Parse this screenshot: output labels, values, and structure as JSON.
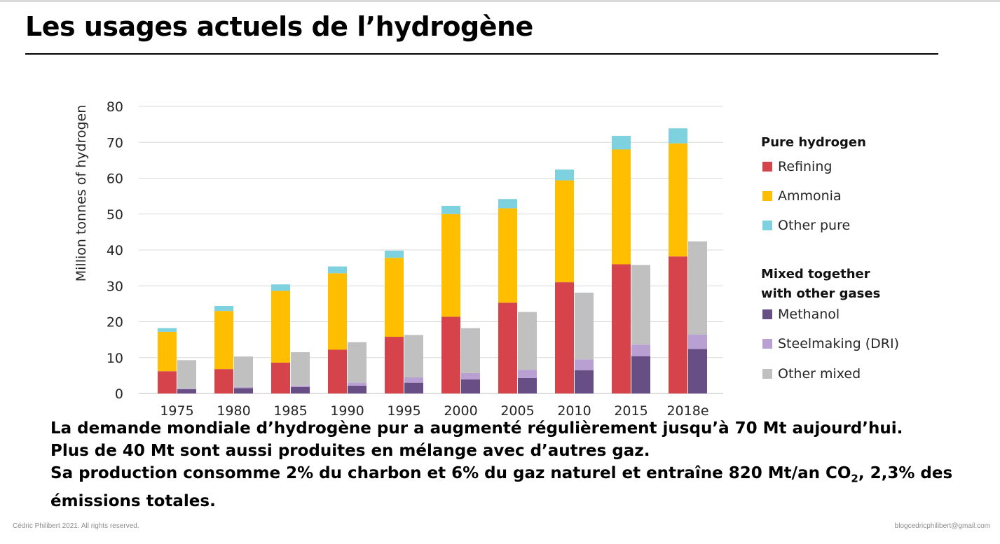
{
  "slide": {
    "title": "Les usages actuels de l’hydrogène",
    "paragraphs": [
      "La demande mondiale d’hydrogène pur a augmenté régulièrement jusqu’à 70 Mt aujourd’hui.",
      "Plus de 40 Mt sont aussi produites en mélange avec d’autres gaz.",
      "Sa production consomme 2% du charbon et 6% du gaz naturel et entraîne 820 Mt/an CO",
      "2",
      ", 2,3% des émissions totales."
    ],
    "footer_left": "Cédric Philibert 2021. All rights reserved.",
    "footer_right": "blogcedricphilibert@gmail.com"
  },
  "legend": {
    "pure_heading": "Pure hydrogen",
    "mixed_heading_line1": "Mixed together",
    "mixed_heading_line2": "with other gases"
  },
  "chart_data": {
    "type": "bar",
    "stacked": true,
    "ylabel": "Million tonnes of hydrogen",
    "ylim": [
      0,
      80
    ],
    "yticks": [
      0,
      10,
      20,
      30,
      40,
      50,
      60,
      70,
      80
    ],
    "grid": true,
    "categories": [
      "1975",
      "1980",
      "1985",
      "1990",
      "1995",
      "2000",
      "2005",
      "2010",
      "2015",
      "2018e"
    ],
    "groups": [
      {
        "name": "Pure hydrogen",
        "series": [
          {
            "name": "Refining",
            "color": "#d6434b",
            "values": [
              6.2,
              6.8,
              8.6,
              12.2,
              15.8,
              21.4,
              25.3,
              31.0,
              36.0,
              38.2
            ]
          },
          {
            "name": "Ammonia",
            "color": "#ffbf00",
            "values": [
              11.0,
              16.2,
              20.0,
              21.3,
              22.0,
              28.6,
              26.3,
              28.4,
              32.0,
              31.5
            ]
          },
          {
            "name": "Other pure",
            "color": "#7ed1df",
            "values": [
              1.0,
              1.4,
              1.8,
              1.9,
              2.0,
              2.3,
              2.6,
              3.0,
              3.8,
              4.2
            ]
          }
        ]
      },
      {
        "name": "Mixed together with other gases",
        "series": [
          {
            "name": "Methanol",
            "color": "#674f86",
            "values": [
              1.2,
              1.5,
              1.8,
              2.2,
              3.0,
              3.9,
              4.3,
              6.5,
              10.4,
              12.4
            ]
          },
          {
            "name": "Steelmaking (DRI)",
            "color": "#b9a0d3",
            "values": [
              0.2,
              0.3,
              0.4,
              0.8,
              1.5,
              1.8,
              2.3,
              3.0,
              3.2,
              4.0
            ]
          },
          {
            "name": "Other mixed",
            "color": "#c0c0c0",
            "values": [
              7.9,
              8.5,
              9.3,
              11.3,
              11.8,
              12.5,
              16.1,
              18.6,
              22.2,
              26.0
            ]
          }
        ]
      }
    ]
  }
}
